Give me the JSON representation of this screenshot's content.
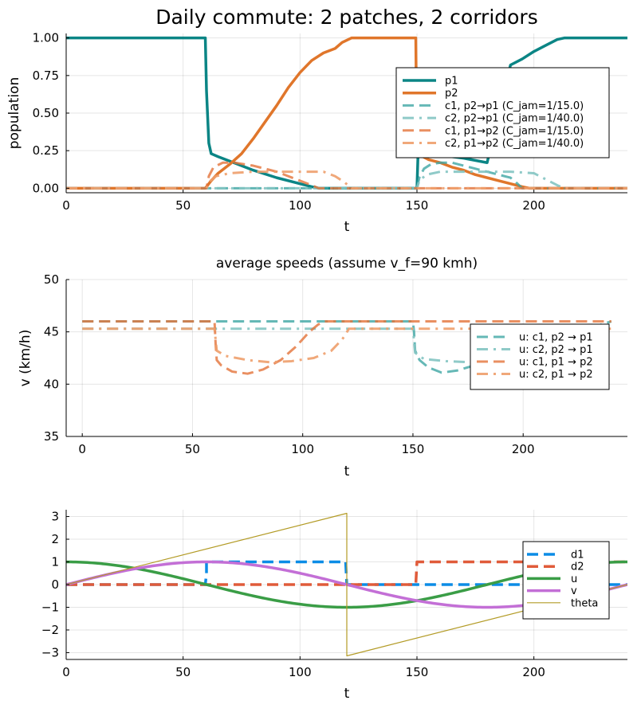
{
  "chart_data": [
    {
      "type": "line",
      "title": "Daily commute: 2 patches, 2 corridors",
      "xlabel": "t",
      "ylabel": "population",
      "xlim": [
        0,
        240
      ],
      "ylim": [
        -0.03,
        1.03
      ],
      "xticks": [
        0,
        50,
        100,
        150,
        200
      ],
      "yticks": [
        0,
        0.25,
        0.5,
        0.75,
        1.0
      ],
      "ytick_labels": [
        "0.00",
        "0.25",
        "0.50",
        "0.75",
        "1.00"
      ],
      "grid": true,
      "legend_position": "right",
      "series": [
        {
          "name": "p1",
          "color": "#0b8585",
          "dash": "solid",
          "width": 3.5,
          "opacity": 1,
          "points": [
            [
              0,
              1
            ],
            [
              59.5,
              1
            ],
            [
              60,
              0.65
            ],
            [
              61,
              0.3
            ],
            [
              62,
              0.23
            ],
            [
              65,
              0.21
            ],
            [
              70,
              0.18
            ],
            [
              80,
              0.12
            ],
            [
              90,
              0.07
            ],
            [
              100,
              0.03
            ],
            [
              105,
              0.01
            ],
            [
              108,
              0
            ],
            [
              150,
              0
            ],
            [
              150.5,
              0.25
            ],
            [
              152,
              0.24
            ],
            [
              160,
              0.22
            ],
            [
              170,
              0.2
            ],
            [
              180,
              0.17
            ],
            [
              185,
              0.5
            ],
            [
              190,
              0.82
            ],
            [
              195,
              0.86
            ],
            [
              200,
              0.91
            ],
            [
              205,
              0.95
            ],
            [
              210,
              0.99
            ],
            [
              213,
              1
            ],
            [
              240,
              1
            ]
          ]
        },
        {
          "name": "p2",
          "color": "#e0762b",
          "dash": "solid",
          "width": 3.5,
          "opacity": 1,
          "points": [
            [
              0,
              0
            ],
            [
              59.5,
              0
            ],
            [
              62,
              0.05
            ],
            [
              65,
              0.1
            ],
            [
              70,
              0.16
            ],
            [
              75,
              0.23
            ],
            [
              80,
              0.33
            ],
            [
              85,
              0.44
            ],
            [
              90,
              0.55
            ],
            [
              95,
              0.67
            ],
            [
              100,
              0.77
            ],
            [
              105,
              0.85
            ],
            [
              110,
              0.9
            ],
            [
              115,
              0.93
            ],
            [
              118,
              0.97
            ],
            [
              122,
              1
            ],
            [
              149.5,
              1
            ],
            [
              150,
              0.23
            ],
            [
              155,
              0.19
            ],
            [
              160,
              0.17
            ],
            [
              165,
              0.14
            ],
            [
              170,
              0.12
            ],
            [
              175,
              0.09
            ],
            [
              180,
              0.07
            ],
            [
              185,
              0.05
            ],
            [
              190,
              0.03
            ],
            [
              195,
              0.01
            ],
            [
              198,
              0
            ],
            [
              240,
              0
            ]
          ]
        },
        {
          "name": "c1, p2→p1 (C_jam=1/15.0)",
          "color": "#3fa6a4",
          "dash": "dash",
          "width": 3,
          "opacity": 0.8,
          "points": [
            [
              0,
              0
            ],
            [
              150,
              0
            ],
            [
              151,
              0.07
            ],
            [
              153,
              0.13
            ],
            [
              156,
              0.16
            ],
            [
              160,
              0.17
            ],
            [
              165,
              0.17
            ],
            [
              170,
              0.15
            ],
            [
              175,
              0.13
            ],
            [
              180,
              0.11
            ],
            [
              185,
              0.09
            ],
            [
              190,
              0.07
            ],
            [
              193,
              0.03
            ],
            [
              195,
              0
            ],
            [
              240,
              0
            ]
          ]
        },
        {
          "name": "c2, p2→p1 (C_jam=1/40.0)",
          "color": "#83c4c2",
          "dash": "dashdot",
          "width": 3,
          "opacity": 0.9,
          "points": [
            [
              0,
              0
            ],
            [
              150,
              0
            ],
            [
              151,
              0.05
            ],
            [
              154,
              0.09
            ],
            [
              160,
              0.11
            ],
            [
              170,
              0.11
            ],
            [
              180,
              0.11
            ],
            [
              190,
              0.11
            ],
            [
              200,
              0.1
            ],
            [
              205,
              0.06
            ],
            [
              210,
              0.02
            ],
            [
              213,
              0
            ],
            [
              240,
              0
            ]
          ]
        },
        {
          "name": "c1, p1→p2 (C_jam=1/15.0)",
          "color": "#e4733a",
          "dash": "dash",
          "width": 3,
          "opacity": 0.8,
          "points": [
            [
              0,
              0
            ],
            [
              60,
              0
            ],
            [
              61,
              0.08
            ],
            [
              63,
              0.14
            ],
            [
              67,
              0.17
            ],
            [
              72,
              0.17
            ],
            [
              80,
              0.15
            ],
            [
              85,
              0.13
            ],
            [
              90,
              0.11
            ],
            [
              95,
              0.08
            ],
            [
              100,
              0.05
            ],
            [
              105,
              0.02
            ],
            [
              108,
              0
            ],
            [
              240,
              0
            ]
          ]
        },
        {
          "name": "c2, p1→p2 (C_jam=1/40.0)",
          "color": "#ee9f6c",
          "dash": "dashdot",
          "width": 3,
          "opacity": 0.9,
          "points": [
            [
              0,
              0
            ],
            [
              60,
              0
            ],
            [
              61,
              0.04
            ],
            [
              64,
              0.08
            ],
            [
              70,
              0.1
            ],
            [
              80,
              0.11
            ],
            [
              90,
              0.11
            ],
            [
              100,
              0.11
            ],
            [
              110,
              0.11
            ],
            [
              115,
              0.08
            ],
            [
              119,
              0.04
            ],
            [
              122,
              0
            ],
            [
              240,
              0
            ]
          ]
        }
      ]
    },
    {
      "type": "line",
      "title": "average speeds (assume v_f=90 kmh)",
      "xlabel": "t",
      "ylabel": "v (km/h)",
      "xlim": [
        -7.3,
        247.3
      ],
      "ylim": [
        35,
        50
      ],
      "xticks": [
        0,
        50,
        100,
        150,
        200
      ],
      "yticks": [
        35,
        40,
        45,
        50
      ],
      "ytick_labels": [
        "35",
        "40",
        "45",
        "50"
      ],
      "grid": true,
      "legend_position": "right",
      "series": [
        {
          "name": "u: c1, p2 → p1",
          "color": "#3fa6a4",
          "dash": "dash",
          "width": 3,
          "opacity": 0.8,
          "points": [
            [
              0,
              46
            ],
            [
              150,
              46
            ],
            [
              150.5,
              45
            ],
            [
              151,
              43.2
            ],
            [
              153,
              42.3
            ],
            [
              157,
              41.6
            ],
            [
              163,
              41.1
            ],
            [
              170,
              41.3
            ],
            [
              178,
              41.8
            ],
            [
              183,
              42.2
            ],
            [
              240,
              46
            ]
          ]
        },
        {
          "name": "u: c2, p2 → p1",
          "color": "#83c4c2",
          "dash": "dashdot",
          "width": 3,
          "opacity": 0.9,
          "points": [
            [
              0,
              45.3
            ],
            [
              150,
              45.3
            ],
            [
              151,
              43
            ],
            [
              155,
              42.4
            ],
            [
              165,
              42.2
            ],
            [
              175,
              42.1
            ],
            [
              185,
              42
            ],
            [
              195,
              41.9
            ],
            [
              240,
              45.3
            ]
          ]
        },
        {
          "name": "u: c1, p1 → p2",
          "color": "#e4733a",
          "dash": "dash",
          "width": 3,
          "opacity": 0.8,
          "points": [
            [
              0,
              46
            ],
            [
              60,
              46
            ],
            [
              60.5,
              43.8
            ],
            [
              61,
              42.3
            ],
            [
              63,
              41.8
            ],
            [
              68,
              41.2
            ],
            [
              75,
              41
            ],
            [
              82,
              41.4
            ],
            [
              90,
              42.3
            ],
            [
              97,
              43.6
            ],
            [
              103,
              45
            ],
            [
              107,
              45.7
            ],
            [
              110,
              46
            ],
            [
              240,
              46
            ]
          ]
        },
        {
          "name": "u: c2, p1 → p2",
          "color": "#ee9f6c",
          "dash": "dashdot",
          "width": 3,
          "opacity": 0.9,
          "points": [
            [
              0,
              45.3
            ],
            [
              60,
              45.3
            ],
            [
              61,
              43.2
            ],
            [
              65,
              42.7
            ],
            [
              75,
              42.3
            ],
            [
              85,
              42.1
            ],
            [
              95,
              42.2
            ],
            [
              105,
              42.5
            ],
            [
              113,
              43.2
            ],
            [
              118,
              44.3
            ],
            [
              121,
              45.3
            ],
            [
              240,
              45.3
            ]
          ]
        }
      ]
    },
    {
      "type": "line",
      "title": "",
      "xlabel": "t",
      "ylabel": "",
      "xlim": [
        0,
        240
      ],
      "ylim": [
        -3.3,
        3.3
      ],
      "xticks": [
        0,
        50,
        100,
        150,
        200
      ],
      "yticks": [
        -3,
        -2,
        -1,
        0,
        1,
        2,
        3
      ],
      "ytick_labels": [
        "−3",
        "−2",
        "−1",
        "0",
        "1",
        "2",
        "3"
      ],
      "grid": true,
      "legend_position": "right",
      "series": [
        {
          "name": "d1",
          "color": "#0b8ce6",
          "dash": "dash",
          "width": 3.5,
          "opacity": 1,
          "points": [
            [
              0,
              0
            ],
            [
              59.5,
              0
            ],
            [
              60,
              0.5
            ],
            [
              60,
              1
            ],
            [
              119.5,
              1
            ],
            [
              120,
              0
            ],
            [
              240,
              0
            ]
          ]
        },
        {
          "name": "d2",
          "color": "#e05b3a",
          "dash": "dash",
          "width": 3.5,
          "opacity": 1,
          "points": [
            [
              0,
              0
            ],
            [
              149.5,
              0
            ],
            [
              150,
              1
            ],
            [
              240,
              1
            ]
          ]
        },
        {
          "name": "u",
          "color": "#3a9d46",
          "dash": "solid",
          "width": 3.5,
          "opacity": 1,
          "function": "cos"
        },
        {
          "name": "v",
          "color": "#c36fd6",
          "dash": "solid",
          "width": 3.5,
          "opacity": 1,
          "function": "sin"
        },
        {
          "name": "theta",
          "color": "#b39b26",
          "dash": "solid",
          "width": 1.2,
          "opacity": 1,
          "points": [
            [
              0,
              0
            ],
            [
              120,
              3.1416
            ],
            [
              120,
              -3.1416
            ],
            [
              240,
              0
            ]
          ]
        }
      ]
    }
  ]
}
